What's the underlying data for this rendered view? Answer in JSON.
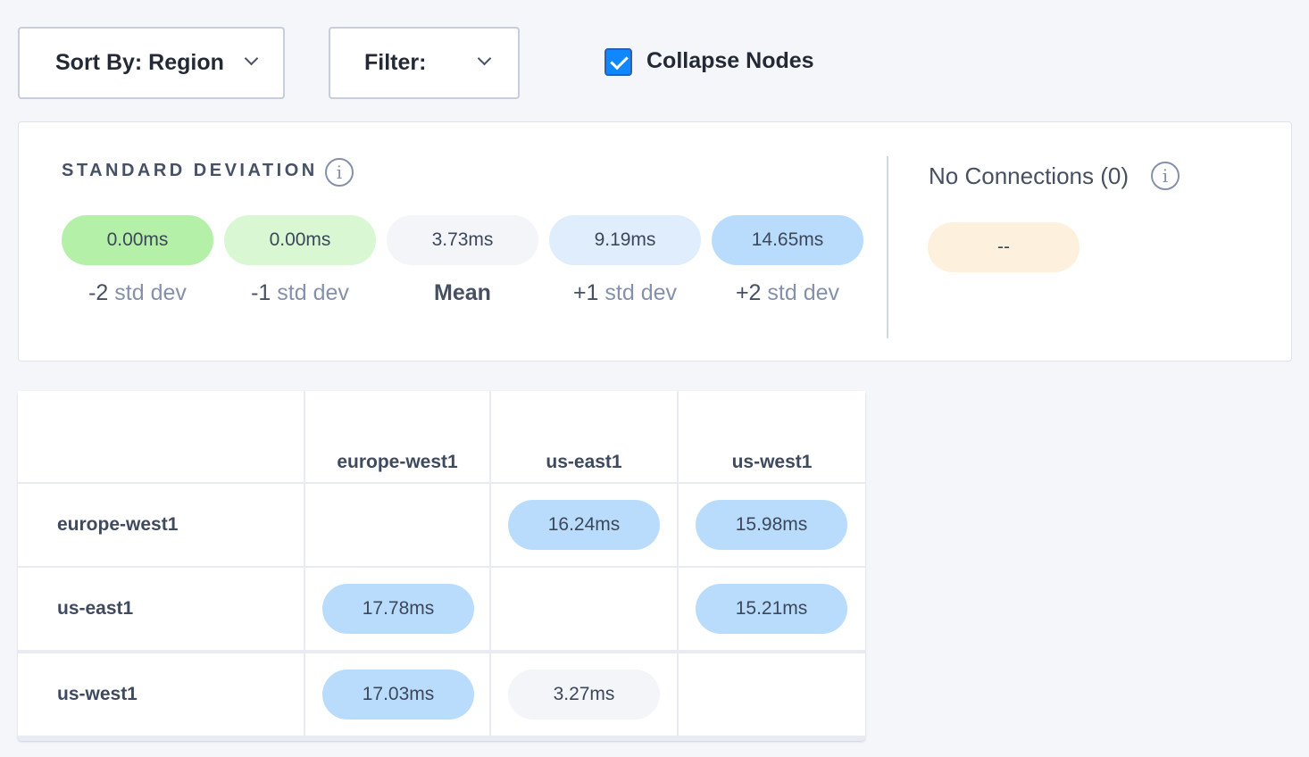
{
  "toolbar": {
    "sort_label": "Sort By: Region",
    "filter_label": "Filter:",
    "collapse_label": "Collapse Nodes",
    "collapse_checked": true
  },
  "std": {
    "title": "STANDARD DEVIATION",
    "items": [
      {
        "value": "0.00ms",
        "prefix": "-2",
        "suffix": " std dev",
        "color": "#b4f0a8"
      },
      {
        "value": "0.00ms",
        "prefix": "-1",
        "suffix": " std dev",
        "color": "#d9f7d3"
      },
      {
        "value": "3.73ms",
        "prefix": "Mean",
        "suffix": "",
        "color": "#f3f5f9"
      },
      {
        "value": "9.19ms",
        "prefix": "+1",
        "suffix": " std dev",
        "color": "#dfedfc"
      },
      {
        "value": "14.65ms",
        "prefix": "+2",
        "suffix": " std dev",
        "color": "#b9dcfd"
      }
    ]
  },
  "no_conn": {
    "title": "No Connections (0)",
    "value": "--",
    "color": "#fdf0dc"
  },
  "matrix": {
    "columns": [
      "europe-west1",
      "us-east1",
      "us-west1"
    ],
    "rows": [
      {
        "label": "europe-west1",
        "cells": [
          null,
          {
            "v": "16.24ms",
            "c": "#b9dcfd"
          },
          {
            "v": "15.98ms",
            "c": "#b9dcfd"
          }
        ]
      },
      {
        "label": "us-east1",
        "cells": [
          {
            "v": "17.78ms",
            "c": "#b9dcfd"
          },
          null,
          {
            "v": "15.21ms",
            "c": "#b9dcfd"
          }
        ]
      },
      {
        "label": "us-west1",
        "cells": [
          {
            "v": "17.03ms",
            "c": "#b9dcfd"
          },
          {
            "v": "3.27ms",
            "c": "#f3f5f9"
          },
          null
        ]
      }
    ]
  }
}
